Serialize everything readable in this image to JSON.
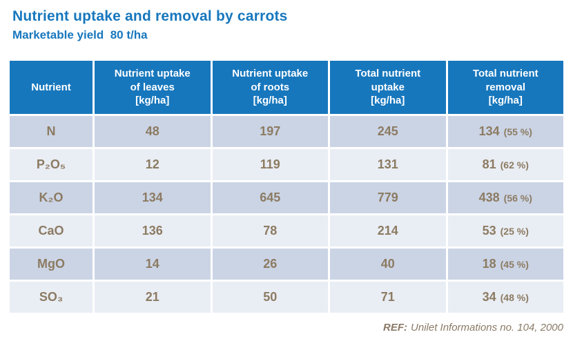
{
  "page": {
    "title": "Nutrient uptake and removal by carrots",
    "subtitle": "Marketable yield  80 t/ha"
  },
  "colors": {
    "accent_blue": "#1777BD",
    "row_dark": "#CBD4E5",
    "row_light": "#E9EDF4",
    "cell_text_brown": "#8C7B62",
    "footer_text": "#8A7966",
    "header_text": "#FFFFFF"
  },
  "table": {
    "headers": {
      "nutrient": "Nutrient",
      "leaves": "Nutrient uptake\nof leaves\n[kg/ha]",
      "roots": "Nutrient uptake\nof roots\n[kg/ha]",
      "total": "Total nutrient\nuptake\n[kg/ha]",
      "removal": "Total nutrient\nremoval\n[kg/ha]"
    },
    "rows": [
      {
        "nutrient": "N",
        "leaves": "48",
        "roots": "197",
        "total": "245",
        "removal": "134",
        "removal_pct": "(55 %)"
      },
      {
        "nutrient": "P₂O₅",
        "leaves": "12",
        "roots": "119",
        "total": "131",
        "removal": "81",
        "removal_pct": "(62 %)"
      },
      {
        "nutrient": "K₂O",
        "leaves": "134",
        "roots": "645",
        "total": "779",
        "removal": "438",
        "removal_pct": "(56 %)"
      },
      {
        "nutrient": "CaO",
        "leaves": "136",
        "roots": "78",
        "total": "214",
        "removal": "53",
        "removal_pct": "(25 %)"
      },
      {
        "nutrient": "MgO",
        "leaves": "14",
        "roots": "26",
        "total": "40",
        "removal": "18",
        "removal_pct": "(45 %)"
      },
      {
        "nutrient": "SO₃",
        "leaves": "21",
        "roots": "50",
        "total": "71",
        "removal": "34",
        "removal_pct": "(48 %)"
      }
    ]
  },
  "footer": {
    "ref_label": "REF:",
    "ref_text": "Unilet Informations no. 104, 2000"
  },
  "chart_data": {
    "type": "table",
    "title": "Nutrient uptake and removal by carrots",
    "subtitle": "Marketable yield 80 t/ha",
    "columns": [
      "Nutrient",
      "Nutrient uptake of leaves [kg/ha]",
      "Nutrient uptake of roots [kg/ha]",
      "Total nutrient uptake [kg/ha]",
      "Total nutrient removal [kg/ha]"
    ],
    "rows": [
      [
        "N",
        48,
        197,
        245,
        "134 (55 %)"
      ],
      [
        "P2O5",
        12,
        119,
        131,
        "81 (62 %)"
      ],
      [
        "K2O",
        134,
        645,
        779,
        "438 (56 %)"
      ],
      [
        "CaO",
        136,
        78,
        214,
        "53 (25 %)"
      ],
      [
        "MgO",
        14,
        26,
        40,
        "18 (45 %)"
      ],
      [
        "SO3",
        21,
        50,
        71,
        "34 (48 %)"
      ]
    ]
  }
}
